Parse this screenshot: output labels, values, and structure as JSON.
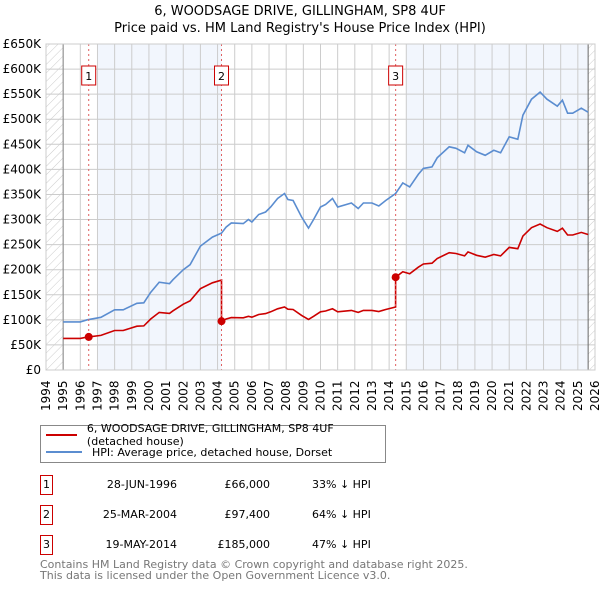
{
  "chart_data": {
    "type": "line",
    "title": "6, WOODSAGE DRIVE, GILLINGHAM, SP8 4UF",
    "subtitle": "Price paid vs. HM Land Registry's House Price Index (HPI)",
    "xlim": [
      1994,
      2026
    ],
    "ylim": [
      0,
      650000
    ],
    "x_ticks": [
      "1994",
      "1995",
      "1996",
      "1997",
      "1998",
      "1999",
      "2000",
      "2001",
      "2002",
      "2003",
      "2004",
      "2005",
      "2006",
      "2007",
      "2008",
      "2009",
      "2010",
      "2011",
      "2012",
      "2013",
      "2014",
      "2015",
      "2016",
      "2017",
      "2018",
      "2019",
      "2020",
      "2021",
      "2022",
      "2023",
      "2024",
      "2025",
      "2026"
    ],
    "y_ticks": [
      {
        "v": 0,
        "label": "£0"
      },
      {
        "v": 50000,
        "label": "£50K"
      },
      {
        "v": 100000,
        "label": "£100K"
      },
      {
        "v": 150000,
        "label": "£150K"
      },
      {
        "v": 200000,
        "label": "£200K"
      },
      {
        "v": 250000,
        "label": "£250K"
      },
      {
        "v": 300000,
        "label": "£300K"
      },
      {
        "v": 350000,
        "label": "£350K"
      },
      {
        "v": 400000,
        "label": "£400K"
      },
      {
        "v": 450000,
        "label": "£450K"
      },
      {
        "v": 500000,
        "label": "£500K"
      },
      {
        "v": 550000,
        "label": "£550K"
      },
      {
        "v": 600000,
        "label": "£600K"
      },
      {
        "v": 650000,
        "label": "£650K"
      }
    ],
    "grid": true,
    "data_start": 1995,
    "data_end": 2025.6,
    "shaded_ranges": [
      [
        1997,
        2004.23
      ],
      [
        2015,
        2025.6
      ]
    ],
    "series": [
      {
        "name": "6, WOODSAGE DRIVE, GILLINGHAM, SP8 4UF (detached house)",
        "color": "#cc0000",
        "derived_from_sales": true
      },
      {
        "name": "HPI: Average price, detached house, Dorset",
        "color": "#5b8dd0",
        "x": [
          1995,
          1996,
          1996.4,
          1997.2,
          1998,
          1998.5,
          1999.3,
          1999.7,
          2000.1,
          2000.6,
          2001.2,
          2001.4,
          2002,
          2002.4,
          2003,
          2003.7,
          2004.23,
          2004.5,
          2004.8,
          2005.5,
          2005.8,
          2006,
          2006.4,
          2006.8,
          2007.1,
          2007.5,
          2007.9,
          2008.1,
          2008.4,
          2008.9,
          2009.3,
          2009.6,
          2010,
          2010.3,
          2010.7,
          2011,
          2011.8,
          2012.2,
          2012.5,
          2013,
          2013.4,
          2013.8,
          2014.38,
          2014.8,
          2015.2,
          2015.7,
          2016,
          2016.5,
          2016.8,
          2017.5,
          2017.9,
          2018.4,
          2018.6,
          2019.1,
          2019.6,
          2020.1,
          2020.5,
          2021,
          2021.5,
          2021.8,
          2022.3,
          2022.8,
          2023.2,
          2023.8,
          2024.1,
          2024.4,
          2024.7,
          2025.2,
          2025.6
        ],
        "y": [
          96000,
          96000,
          100000,
          105000,
          120000,
          120000,
          133000,
          134000,
          155000,
          175000,
          172000,
          180000,
          200000,
          210000,
          247000,
          265000,
          273000,
          285000,
          293000,
          292000,
          300000,
          295000,
          310000,
          315000,
          325000,
          342000,
          352000,
          340000,
          338000,
          305000,
          283000,
          300000,
          325000,
          330000,
          342000,
          325000,
          333000,
          322000,
          333000,
          333000,
          327000,
          338000,
          352000,
          373000,
          365000,
          390000,
          402000,
          405000,
          423000,
          445000,
          442000,
          433000,
          448000,
          435000,
          428000,
          438000,
          433000,
          465000,
          460000,
          508000,
          540000,
          554000,
          540000,
          526000,
          538000,
          512000,
          512000,
          522000,
          514000
        ]
      }
    ],
    "sales": [
      {
        "n": "1",
        "x": 1996.49,
        "date": "28-JUN-1996",
        "price": 66000,
        "price_label": "£66,000",
        "hpi_label": "33% ↓ HPI"
      },
      {
        "n": "2",
        "x": 2004.23,
        "date": "25-MAR-2004",
        "price": 97400,
        "price_label": "£97,400",
        "hpi_label": "64% ↓ HPI"
      },
      {
        "n": "3",
        "x": 2014.38,
        "date": "19-MAY-2014",
        "price": 185000,
        "price_label": "£185,000",
        "hpi_label": "47% ↓ HPI"
      }
    ]
  },
  "footer": {
    "line1": "Contains HM Land Registry data © Crown copyright and database right 2025.",
    "line2": "This data is licensed under the Open Government Licence v3.0."
  }
}
